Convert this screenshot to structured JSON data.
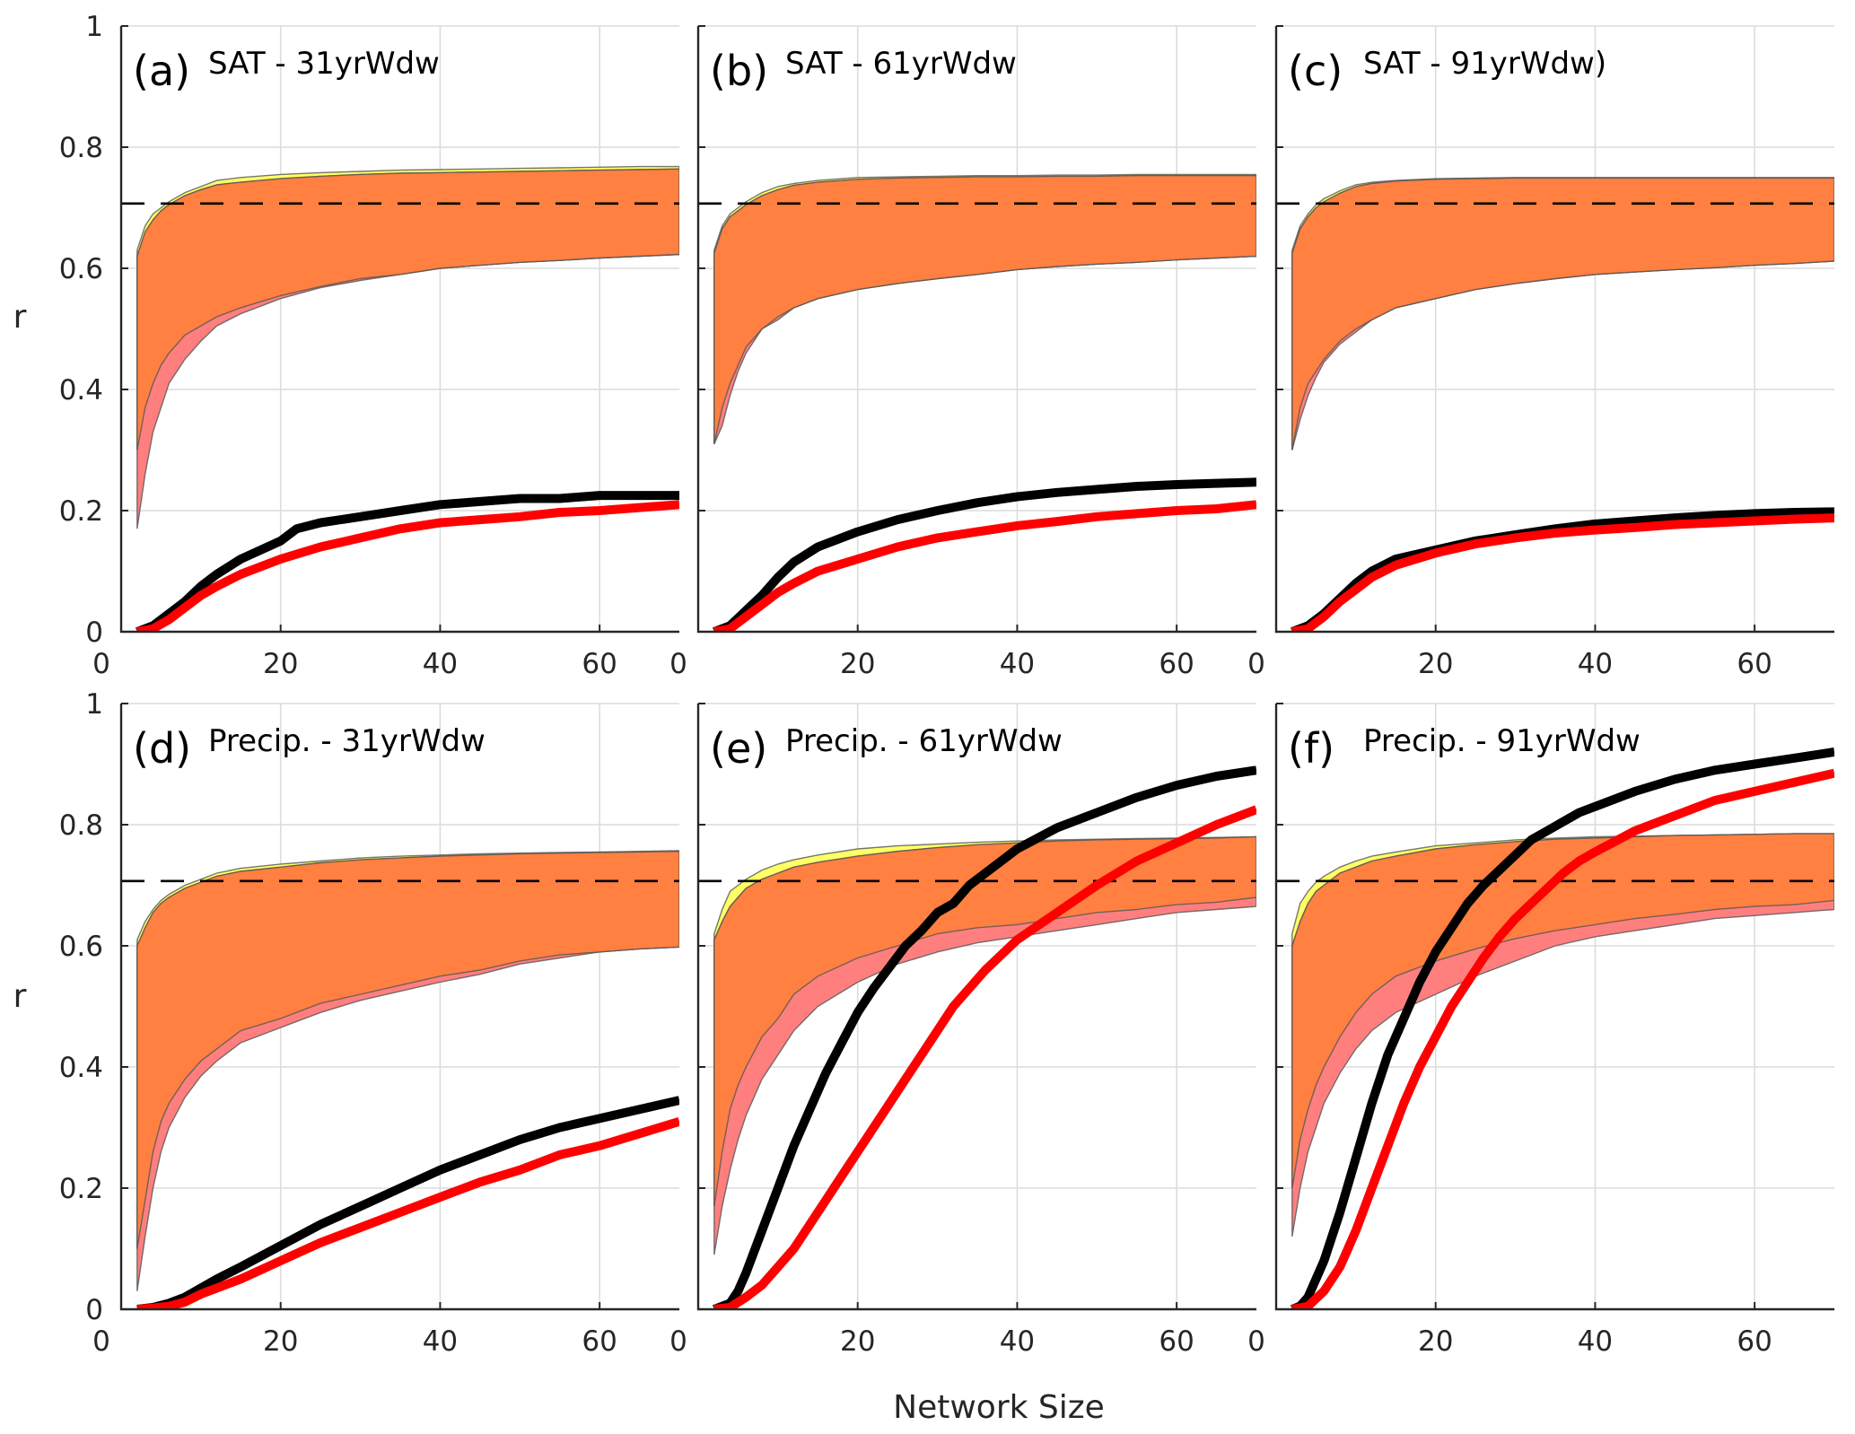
{
  "chart_data": {
    "type": "line",
    "layout": "2x3 grid of panels",
    "xlabel": "Network Size",
    "ylabel": "r",
    "xlim": [
      0,
      70
    ],
    "ylim": [
      0,
      1
    ],
    "xticks": [
      0,
      20,
      40,
      60
    ],
    "xtick_labels": [
      "0",
      "20",
      "40",
      "60"
    ],
    "yticks": [
      0,
      0.2,
      0.4,
      0.6,
      0.8,
      1
    ],
    "ytick_labels": [
      "0",
      "0.2",
      "0.4",
      "0.6",
      "0.8",
      "1"
    ],
    "grid": true,
    "threshold": 0.707,
    "colors": {
      "band_yellow": "#ffff66",
      "band_pink": "#ff7f7f",
      "band_overlap": "#ff8040",
      "line_black": "#000000",
      "line_red": "#ff0000",
      "threshold": "#000000"
    },
    "panels": [
      {
        "letter": "(a)",
        "title": "SAT - 31yrWdw",
        "x": [
          2,
          3,
          4,
          5,
          6,
          8,
          10,
          12,
          15,
          20,
          25,
          30,
          35,
          40,
          45,
          50,
          55,
          60,
          65,
          70
        ],
        "yellow_hi": [
          0.63,
          0.67,
          0.69,
          0.7,
          0.71,
          0.725,
          0.735,
          0.745,
          0.75,
          0.755,
          0.758,
          0.76,
          0.762,
          0.763,
          0.764,
          0.765,
          0.766,
          0.767,
          0.768,
          0.768
        ],
        "yellow_lo": [
          0.3,
          0.37,
          0.41,
          0.44,
          0.46,
          0.49,
          0.505,
          0.52,
          0.535,
          0.555,
          0.57,
          0.583,
          0.59,
          0.6,
          0.605,
          0.61,
          0.613,
          0.617,
          0.62,
          0.623
        ],
        "pink_hi": [
          0.62,
          0.66,
          0.68,
          0.695,
          0.705,
          0.72,
          0.73,
          0.738,
          0.742,
          0.748,
          0.752,
          0.755,
          0.757,
          0.758,
          0.759,
          0.76,
          0.761,
          0.762,
          0.763,
          0.764
        ],
        "pink_lo": [
          0.17,
          0.26,
          0.33,
          0.37,
          0.41,
          0.45,
          0.48,
          0.505,
          0.525,
          0.55,
          0.568,
          0.58,
          0.59,
          0.6,
          0.605,
          0.61,
          0.613,
          0.617,
          0.62,
          0.623
        ],
        "black_x": [
          2,
          4,
          6,
          8,
          10,
          12,
          15,
          20,
          22,
          25,
          30,
          35,
          40,
          45,
          50,
          55,
          60,
          65,
          70
        ],
        "black": [
          0,
          0.01,
          0.03,
          0.05,
          0.075,
          0.095,
          0.12,
          0.15,
          0.17,
          0.18,
          0.19,
          0.2,
          0.21,
          0.215,
          0.22,
          0.22,
          0.225,
          0.225,
          0.225
        ],
        "red_x": [
          2,
          4,
          6,
          8,
          10,
          12,
          15,
          20,
          25,
          30,
          35,
          40,
          45,
          50,
          55,
          60,
          65,
          70
        ],
        "red": [
          0,
          0.005,
          0.02,
          0.04,
          0.06,
          0.075,
          0.095,
          0.12,
          0.14,
          0.155,
          0.17,
          0.18,
          0.185,
          0.19,
          0.197,
          0.2,
          0.205,
          0.21
        ]
      },
      {
        "letter": "(b)",
        "title": "SAT - 61yrWdw",
        "x": [
          2,
          3,
          4,
          5,
          6,
          8,
          10,
          12,
          15,
          20,
          25,
          30,
          35,
          40,
          45,
          50,
          55,
          60,
          65,
          70
        ],
        "yellow_hi": [
          0.63,
          0.67,
          0.69,
          0.7,
          0.71,
          0.725,
          0.735,
          0.74,
          0.745,
          0.75,
          0.751,
          0.752,
          0.753,
          0.753,
          0.754,
          0.754,
          0.755,
          0.755,
          0.755,
          0.755
        ],
        "yellow_lo": [
          0.31,
          0.37,
          0.41,
          0.44,
          0.47,
          0.5,
          0.52,
          0.535,
          0.55,
          0.565,
          0.575,
          0.583,
          0.59,
          0.598,
          0.603,
          0.607,
          0.61,
          0.614,
          0.617,
          0.62
        ],
        "pink_hi": [
          0.625,
          0.665,
          0.685,
          0.695,
          0.705,
          0.72,
          0.73,
          0.737,
          0.742,
          0.747,
          0.749,
          0.75,
          0.751,
          0.751,
          0.752,
          0.752,
          0.753,
          0.753,
          0.753,
          0.753
        ],
        "pink_lo": [
          0.31,
          0.34,
          0.39,
          0.43,
          0.46,
          0.5,
          0.515,
          0.535,
          0.55,
          0.565,
          0.575,
          0.583,
          0.59,
          0.598,
          0.603,
          0.607,
          0.61,
          0.614,
          0.617,
          0.62
        ],
        "black_x": [
          2,
          4,
          6,
          8,
          10,
          12,
          15,
          20,
          25,
          30,
          35,
          40,
          45,
          50,
          55,
          60,
          65,
          70
        ],
        "black": [
          0,
          0.01,
          0.035,
          0.06,
          0.09,
          0.115,
          0.14,
          0.165,
          0.185,
          0.2,
          0.213,
          0.223,
          0.23,
          0.235,
          0.24,
          0.243,
          0.245,
          0.247
        ],
        "red_x": [
          2,
          4,
          6,
          8,
          10,
          12,
          15,
          20,
          25,
          30,
          35,
          40,
          45,
          50,
          55,
          60,
          65,
          70
        ],
        "red": [
          0,
          0.005,
          0.025,
          0.045,
          0.065,
          0.08,
          0.1,
          0.12,
          0.14,
          0.155,
          0.165,
          0.175,
          0.182,
          0.19,
          0.195,
          0.2,
          0.203,
          0.21
        ]
      },
      {
        "letter": "(c)",
        "title": "SAT - 91yrWdw)",
        "x": [
          2,
          3,
          4,
          5,
          6,
          8,
          10,
          12,
          15,
          20,
          25,
          30,
          35,
          40,
          45,
          50,
          55,
          60,
          65,
          70
        ],
        "yellow_hi": [
          0.63,
          0.67,
          0.69,
          0.705,
          0.715,
          0.728,
          0.738,
          0.742,
          0.745,
          0.748,
          0.749,
          0.75,
          0.75,
          0.75,
          0.75,
          0.75,
          0.75,
          0.75,
          0.75,
          0.75
        ],
        "yellow_lo": [
          0.3,
          0.37,
          0.41,
          0.43,
          0.45,
          0.48,
          0.5,
          0.515,
          0.535,
          0.55,
          0.565,
          0.575,
          0.583,
          0.59,
          0.594,
          0.598,
          0.601,
          0.605,
          0.608,
          0.612
        ],
        "pink_hi": [
          0.625,
          0.665,
          0.685,
          0.7,
          0.71,
          0.724,
          0.735,
          0.74,
          0.744,
          0.747,
          0.748,
          0.749,
          0.749,
          0.749,
          0.749,
          0.749,
          0.749,
          0.749,
          0.749,
          0.749
        ],
        "pink_lo": [
          0.3,
          0.35,
          0.39,
          0.42,
          0.445,
          0.475,
          0.495,
          0.515,
          0.535,
          0.55,
          0.565,
          0.575,
          0.583,
          0.59,
          0.594,
          0.598,
          0.601,
          0.605,
          0.608,
          0.612
        ],
        "black_x": [
          2,
          4,
          6,
          8,
          10,
          12,
          15,
          20,
          25,
          30,
          35,
          40,
          45,
          50,
          55,
          60,
          65,
          70
        ],
        "black": [
          0,
          0.01,
          0.03,
          0.055,
          0.08,
          0.1,
          0.12,
          0.135,
          0.15,
          0.16,
          0.17,
          0.178,
          0.183,
          0.188,
          0.192,
          0.195,
          0.197,
          0.198
        ],
        "red_x": [
          2,
          4,
          6,
          8,
          10,
          12,
          15,
          20,
          25,
          30,
          35,
          40,
          45,
          50,
          55,
          60,
          65,
          70
        ],
        "red": [
          0,
          0.005,
          0.025,
          0.05,
          0.07,
          0.09,
          0.11,
          0.13,
          0.145,
          0.155,
          0.163,
          0.168,
          0.172,
          0.177,
          0.18,
          0.183,
          0.186,
          0.188
        ]
      },
      {
        "letter": "(d)",
        "title": "Precip. - 31yrWdw",
        "x": [
          2,
          3,
          4,
          5,
          6,
          8,
          10,
          12,
          15,
          20,
          25,
          30,
          35,
          40,
          45,
          50,
          55,
          60,
          65,
          70
        ],
        "yellow_hi": [
          0.61,
          0.64,
          0.66,
          0.675,
          0.685,
          0.7,
          0.71,
          0.72,
          0.728,
          0.735,
          0.74,
          0.745,
          0.748,
          0.75,
          0.752,
          0.753,
          0.754,
          0.755,
          0.756,
          0.757
        ],
        "yellow_lo": [
          0.1,
          0.18,
          0.26,
          0.31,
          0.34,
          0.38,
          0.41,
          0.43,
          0.46,
          0.48,
          0.505,
          0.52,
          0.535,
          0.55,
          0.56,
          0.575,
          0.585,
          0.59,
          0.595,
          0.598
        ],
        "pink_hi": [
          0.6,
          0.63,
          0.655,
          0.67,
          0.68,
          0.695,
          0.705,
          0.715,
          0.723,
          0.73,
          0.737,
          0.742,
          0.745,
          0.748,
          0.75,
          0.752,
          0.753,
          0.754,
          0.755,
          0.756
        ],
        "pink_lo": [
          0.03,
          0.12,
          0.2,
          0.26,
          0.3,
          0.35,
          0.385,
          0.41,
          0.44,
          0.465,
          0.49,
          0.51,
          0.525,
          0.54,
          0.553,
          0.57,
          0.58,
          0.59,
          0.595,
          0.598
        ],
        "black_x": [
          2,
          4,
          6,
          8,
          10,
          12,
          15,
          20,
          25,
          30,
          35,
          40,
          45,
          50,
          55,
          60,
          65,
          70
        ],
        "black": [
          0,
          0.003,
          0.01,
          0.02,
          0.035,
          0.05,
          0.07,
          0.105,
          0.14,
          0.17,
          0.2,
          0.23,
          0.255,
          0.28,
          0.3,
          0.315,
          0.33,
          0.345
        ],
        "red_x": [
          2,
          4,
          6,
          8,
          10,
          12,
          15,
          20,
          25,
          30,
          35,
          40,
          45,
          50,
          55,
          60,
          65,
          70
        ],
        "red": [
          0,
          0.002,
          0.005,
          0.012,
          0.025,
          0.035,
          0.05,
          0.08,
          0.11,
          0.135,
          0.16,
          0.185,
          0.21,
          0.23,
          0.255,
          0.27,
          0.29,
          0.31
        ]
      },
      {
        "letter": "(e)",
        "title": "Precip. - 61yrWdw",
        "x": [
          2,
          3,
          4,
          5,
          6,
          8,
          10,
          12,
          15,
          20,
          25,
          30,
          35,
          40,
          45,
          50,
          55,
          60,
          65,
          70
        ],
        "yellow_hi": [
          0.62,
          0.66,
          0.69,
          0.7,
          0.71,
          0.725,
          0.735,
          0.742,
          0.75,
          0.76,
          0.765,
          0.768,
          0.771,
          0.773,
          0.775,
          0.776,
          0.777,
          0.778,
          0.779,
          0.78
        ],
        "yellow_lo": [
          0.17,
          0.26,
          0.33,
          0.37,
          0.4,
          0.45,
          0.48,
          0.52,
          0.55,
          0.58,
          0.6,
          0.62,
          0.63,
          0.635,
          0.645,
          0.655,
          0.66,
          0.668,
          0.672,
          0.68
        ],
        "pink_hi": [
          0.61,
          0.64,
          0.665,
          0.68,
          0.695,
          0.71,
          0.72,
          0.73,
          0.738,
          0.748,
          0.756,
          0.762,
          0.767,
          0.77,
          0.773,
          0.775,
          0.776,
          0.777,
          0.778,
          0.78
        ],
        "pink_lo": [
          0.09,
          0.17,
          0.23,
          0.28,
          0.32,
          0.38,
          0.42,
          0.46,
          0.5,
          0.54,
          0.57,
          0.59,
          0.605,
          0.615,
          0.625,
          0.635,
          0.645,
          0.655,
          0.66,
          0.665
        ],
        "black_x": [
          2,
          4,
          5,
          6,
          8,
          10,
          12,
          14,
          16,
          18,
          20,
          22,
          24,
          26,
          28,
          30,
          32,
          34,
          36,
          38,
          40,
          45,
          50,
          55,
          60,
          65,
          70
        ],
        "black": [
          0,
          0.01,
          0.03,
          0.06,
          0.13,
          0.2,
          0.27,
          0.33,
          0.39,
          0.44,
          0.49,
          0.53,
          0.565,
          0.6,
          0.625,
          0.655,
          0.67,
          0.7,
          0.72,
          0.74,
          0.76,
          0.795,
          0.82,
          0.845,
          0.865,
          0.88,
          0.89
        ],
        "red_x": [
          2,
          4,
          6,
          8,
          10,
          12,
          14,
          16,
          18,
          20,
          22,
          24,
          26,
          28,
          30,
          32,
          34,
          36,
          38,
          40,
          45,
          50,
          55,
          60,
          65,
          70
        ],
        "red": [
          0,
          0.003,
          0.02,
          0.04,
          0.07,
          0.1,
          0.14,
          0.18,
          0.22,
          0.26,
          0.3,
          0.34,
          0.38,
          0.42,
          0.46,
          0.5,
          0.53,
          0.56,
          0.585,
          0.61,
          0.655,
          0.7,
          0.74,
          0.77,
          0.8,
          0.825
        ]
      },
      {
        "letter": "(f)",
        "title": "Precip. - 91yrWdw",
        "x": [
          2,
          3,
          4,
          5,
          6,
          8,
          10,
          12,
          15,
          20,
          25,
          30,
          35,
          40,
          45,
          50,
          55,
          60,
          65,
          70
        ],
        "yellow_hi": [
          0.62,
          0.67,
          0.69,
          0.705,
          0.715,
          0.73,
          0.74,
          0.748,
          0.755,
          0.765,
          0.77,
          0.775,
          0.778,
          0.78,
          0.781,
          0.782,
          0.783,
          0.784,
          0.785,
          0.785
        ],
        "yellow_lo": [
          0.2,
          0.28,
          0.33,
          0.37,
          0.4,
          0.45,
          0.49,
          0.52,
          0.55,
          0.575,
          0.595,
          0.612,
          0.625,
          0.635,
          0.645,
          0.652,
          0.66,
          0.665,
          0.668,
          0.675
        ],
        "pink_hi": [
          0.6,
          0.64,
          0.67,
          0.69,
          0.7,
          0.72,
          0.73,
          0.74,
          0.748,
          0.76,
          0.767,
          0.772,
          0.776,
          0.778,
          0.78,
          0.782,
          0.783,
          0.784,
          0.785,
          0.785
        ],
        "pink_lo": [
          0.12,
          0.2,
          0.26,
          0.3,
          0.34,
          0.39,
          0.43,
          0.46,
          0.49,
          0.52,
          0.55,
          0.575,
          0.6,
          0.615,
          0.625,
          0.635,
          0.645,
          0.65,
          0.655,
          0.66
        ],
        "black_x": [
          2,
          3,
          4,
          5,
          6,
          8,
          10,
          12,
          14,
          16,
          18,
          20,
          22,
          24,
          26,
          28,
          30,
          32,
          34,
          36,
          38,
          40,
          45,
          50,
          55,
          60,
          65,
          70
        ],
        "black": [
          0,
          0.005,
          0.02,
          0.05,
          0.08,
          0.16,
          0.25,
          0.34,
          0.42,
          0.48,
          0.54,
          0.59,
          0.63,
          0.67,
          0.7,
          0.725,
          0.75,
          0.775,
          0.79,
          0.805,
          0.82,
          0.83,
          0.855,
          0.875,
          0.89,
          0.9,
          0.91,
          0.92
        ],
        "red_x": [
          2,
          4,
          6,
          8,
          10,
          12,
          14,
          16,
          18,
          20,
          22,
          24,
          26,
          28,
          30,
          32,
          34,
          36,
          38,
          40,
          45,
          50,
          55,
          60,
          65,
          70
        ],
        "red": [
          0,
          0.005,
          0.03,
          0.07,
          0.13,
          0.2,
          0.27,
          0.34,
          0.4,
          0.45,
          0.5,
          0.54,
          0.58,
          0.615,
          0.645,
          0.67,
          0.695,
          0.72,
          0.74,
          0.755,
          0.79,
          0.815,
          0.84,
          0.855,
          0.87,
          0.885
        ]
      }
    ]
  }
}
